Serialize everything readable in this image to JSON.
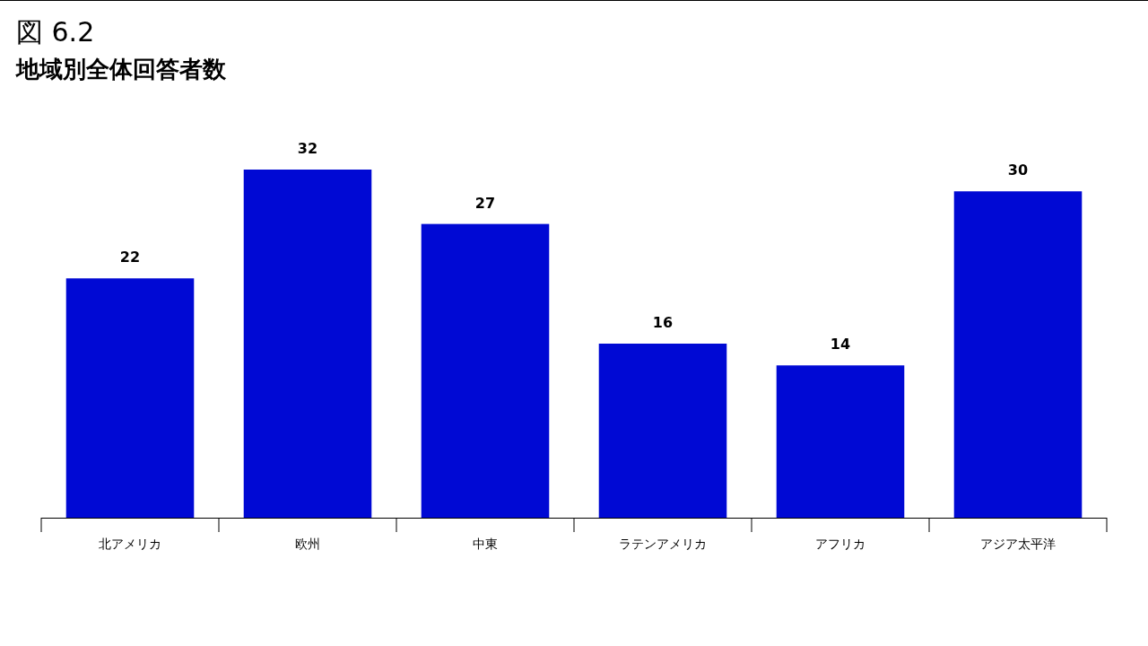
{
  "chart_data": {
    "type": "bar",
    "title": "図 6.2",
    "subtitle": "地域別全体回答者数",
    "categories": [
      "北アメリカ",
      "欧州",
      "中東",
      "ラテンアメリカ",
      "アフリカ",
      "アジア太平洋"
    ],
    "values": [
      22,
      32,
      27,
      16,
      14,
      30
    ],
    "color": "#0009d4",
    "data_labels": true
  }
}
